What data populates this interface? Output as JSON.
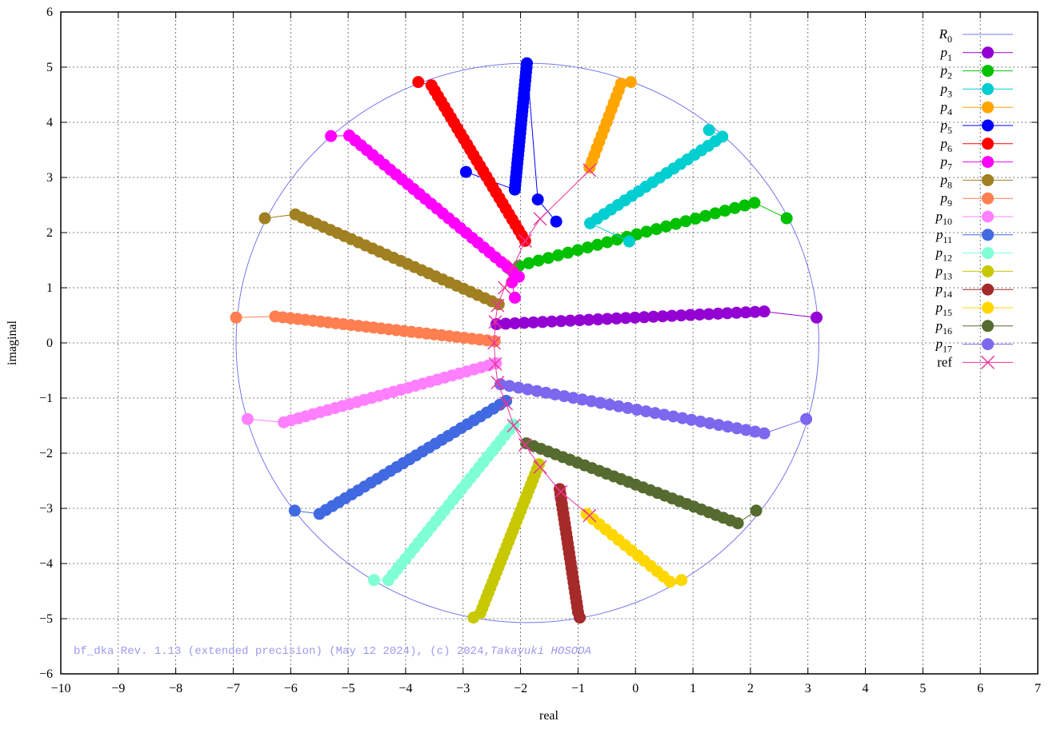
{
  "chart_data": {
    "type": "scatter",
    "xlabel": "real",
    "ylabel": "imaginal",
    "xlim": [
      -10,
      7
    ],
    "ylim": [
      -6,
      6
    ],
    "xticks": [
      -10,
      -9,
      -8,
      -7,
      -6,
      -5,
      -4,
      -3,
      -2,
      -1,
      0,
      1,
      2,
      3,
      4,
      5,
      6,
      7
    ],
    "yticks": [
      -6,
      -5,
      -4,
      -3,
      -2,
      -1,
      0,
      1,
      2,
      3,
      4,
      5,
      6
    ],
    "grid": true,
    "legend_placement": "top-right",
    "footer_text": "bf_dka Rev. 1.13 (extended precision) (May 12 2024), (c) 2024,",
    "footer_author": "Takayuki HOSODA",
    "circle": {
      "name": "R0",
      "name_main": "R",
      "name_sub": "0",
      "center": [
        -1.88,
        0.0
      ],
      "radius": 5.07,
      "color": "#7777ee"
    },
    "reference": {
      "name": "ref",
      "color": "#ee3399",
      "points": [
        [
          -0.8,
          3.13
        ],
        [
          -1.66,
          2.25
        ],
        [
          -1.92,
          1.85
        ],
        [
          -2.12,
          1.4
        ],
        [
          -2.28,
          1.0
        ],
        [
          -2.4,
          0.68
        ],
        [
          -2.44,
          0.38
        ],
        [
          -2.46,
          0.0
        ],
        [
          -2.44,
          -0.38
        ],
        [
          -2.4,
          -0.72
        ],
        [
          -2.25,
          -1.1
        ],
        [
          -2.12,
          -1.5
        ],
        [
          -1.92,
          -1.85
        ],
        [
          -1.66,
          -2.25
        ],
        [
          -1.3,
          -2.7
        ],
        [
          -0.8,
          -3.13
        ]
      ]
    },
    "series": [
      {
        "name": "p1",
        "name_main": "p",
        "name_sub": "1",
        "color": "#9400d3",
        "first": [
          3.15,
          0.46
        ],
        "next": [
          2.24,
          0.57
        ],
        "last": [
          -2.42,
          0.34
        ],
        "n": 30
      },
      {
        "name": "p2",
        "name_main": "p",
        "name_sub": "2",
        "color": "#00c000",
        "first": [
          2.63,
          2.26
        ],
        "next": [
          2.07,
          2.54
        ],
        "last": [
          -2.2,
          1.35
        ],
        "n": 26
      },
      {
        "name": "p3",
        "name_main": "p",
        "name_sub": "3",
        "color": "#00ced1",
        "first": [
          -0.11,
          1.84
        ],
        "next": [
          -0.79,
          2.17
        ],
        "last": [
          1.51,
          3.74
        ],
        "n": 20,
        "extra": [
          [
            1.28,
            3.86
          ]
        ]
      },
      {
        "name": "p4",
        "name_main": "p",
        "name_sub": "4",
        "color": "#ffa500",
        "first": [
          -0.08,
          4.73
        ],
        "next": [
          -0.25,
          4.7
        ],
        "last": [
          -0.8,
          3.18
        ],
        "n": 14
      },
      {
        "name": "p5",
        "name_main": "p",
        "name_sub": "5",
        "color": "#0000ff",
        "first": [
          -2.95,
          3.1
        ],
        "next": [
          -2.1,
          2.78
        ],
        "last": [
          -1.89,
          5.07
        ],
        "n": 30,
        "extra": [
          [
            -1.7,
            2.6
          ],
          [
            -1.38,
            2.2
          ]
        ]
      },
      {
        "name": "p6",
        "name_main": "p",
        "name_sub": "6",
        "color": "#ff0000",
        "first": [
          -3.78,
          4.73
        ],
        "next": [
          -3.55,
          4.67
        ],
        "last": [
          -1.92,
          1.85
        ],
        "n": 30
      },
      {
        "name": "p7",
        "name_main": "p",
        "name_sub": "7",
        "color": "#ff00ff",
        "first": [
          -5.3,
          3.75
        ],
        "next": [
          -4.98,
          3.76
        ],
        "last": [
          -2.03,
          1.2
        ],
        "n": 30,
        "extra": [
          [
            -2.15,
            1.1
          ],
          [
            -2.1,
            0.82
          ]
        ]
      },
      {
        "name": "p8",
        "name_main": "p",
        "name_sub": "8",
        "color": "#a08020",
        "first": [
          -6.45,
          2.26
        ],
        "next": [
          -5.92,
          2.33
        ],
        "last": [
          -2.38,
          0.7
        ],
        "n": 30
      },
      {
        "name": "p9",
        "name_main": "p",
        "name_sub": "9",
        "color": "#ff7f50",
        "first": [
          -6.95,
          0.46
        ],
        "next": [
          -6.27,
          0.48
        ],
        "last": [
          -2.45,
          0.03
        ],
        "n": 30
      },
      {
        "name": "p10",
        "name_main": "p",
        "name_sub": "10",
        "color": "#ff80ff",
        "first": [
          -6.75,
          -1.38
        ],
        "next": [
          -6.12,
          -1.44
        ],
        "last": [
          -2.43,
          -0.37
        ],
        "n": 30
      },
      {
        "name": "p11",
        "name_main": "p",
        "name_sub": "11",
        "color": "#4169e1",
        "first": [
          -5.93,
          -3.04
        ],
        "next": [
          -5.5,
          -3.1
        ],
        "last": [
          -2.25,
          -1.05
        ],
        "n": 30
      },
      {
        "name": "p12",
        "name_main": "p",
        "name_sub": "12",
        "color": "#7fffd4",
        "first": [
          -4.55,
          -4.3
        ],
        "next": [
          -4.3,
          -4.3
        ],
        "last": [
          -2.12,
          -1.48
        ],
        "n": 30
      },
      {
        "name": "p13",
        "name_main": "p",
        "name_sub": "13",
        "color": "#c8c800",
        "first": [
          -2.82,
          -4.98
        ],
        "next": [
          -2.7,
          -4.9
        ],
        "last": [
          -1.68,
          -2.2
        ],
        "n": 30
      },
      {
        "name": "p14",
        "name_main": "p",
        "name_sub": "14",
        "color": "#a52a2a",
        "first": [
          -0.97,
          -4.98
        ],
        "next": [
          -1.0,
          -4.88
        ],
        "last": [
          -1.32,
          -2.65
        ],
        "n": 26
      },
      {
        "name": "p15",
        "name_main": "p",
        "name_sub": "15",
        "color": "#ffd700",
        "first": [
          0.8,
          -4.3
        ],
        "next": [
          0.6,
          -4.33
        ],
        "last": [
          -0.85,
          -3.1
        ],
        "n": 14
      },
      {
        "name": "p16",
        "name_main": "p",
        "name_sub": "16",
        "color": "#556b2f",
        "first": [
          2.1,
          -3.04
        ],
        "next": [
          1.78,
          -3.27
        ],
        "last": [
          -1.9,
          -1.82
        ],
        "n": 30
      },
      {
        "name": "p17",
        "name_main": "p",
        "name_sub": "17",
        "color": "#7b68ee",
        "first": [
          2.97,
          -1.38
        ],
        "next": [
          2.24,
          -1.64
        ],
        "last": [
          -2.35,
          -0.75
        ],
        "n": 30
      }
    ]
  }
}
